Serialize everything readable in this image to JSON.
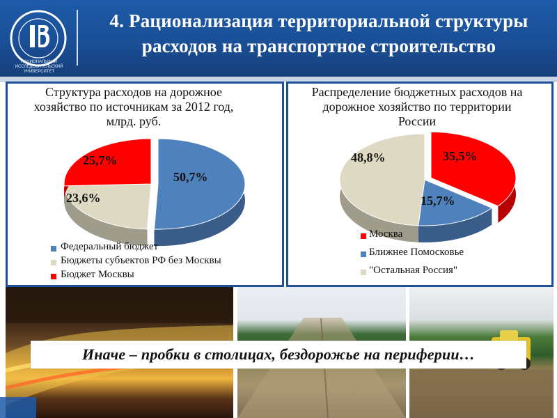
{
  "header": {
    "title": "4. Рационализация территориальной структуры расходов на транспортное строительство",
    "logo_text": "НАЦИОНАЛЬНЫЙ ИССЛЕДОВАТЕЛЬСКИЙ УНИВЕРСИТЕТ"
  },
  "colors": {
    "header_bg": "#1a4f97",
    "panel_border": "#1f4f96",
    "blue_slice": "#4f81bd",
    "beige_slice": "#ddd9c3",
    "red_slice": "#ff0000"
  },
  "caption": "Иначе – пробки в столицах, бездорожье на периферии…",
  "chart_data": [
    {
      "type": "pie",
      "title": "Структура расходов на дорожное хозяйство по источникам за 2012 год, млрд. руб.",
      "labels": [
        "Федеральный бюджет",
        "Бюджеты субъектов РФ без Москвы",
        "Бюджет Москвы"
      ],
      "values": [
        50.7,
        23.6,
        25.7
      ],
      "value_labels": [
        "50,7%",
        "23,6%",
        "25,7%"
      ],
      "colors": [
        "#4f81bd",
        "#ddd9c3",
        "#ff0000"
      ],
      "legend": "bottom"
    },
    {
      "type": "pie",
      "title": "Распределение бюджетных расходов на дорожное хозяйство по территории России",
      "labels": [
        "Москва",
        "Ближнее Помосковье",
        "\"Остальная Россия\""
      ],
      "values": [
        35.5,
        15.7,
        48.8
      ],
      "value_labels": [
        "35,5%",
        "15,7%",
        "48,8%"
      ],
      "colors": [
        "#ff0000",
        "#4f81bd",
        "#ddd9c3"
      ],
      "legend": "bottom"
    }
  ]
}
